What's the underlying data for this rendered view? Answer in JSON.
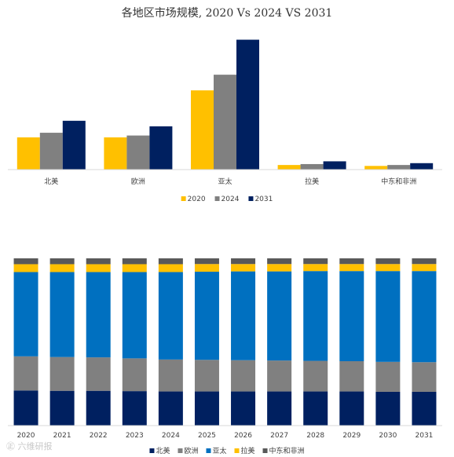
{
  "watermark": "㊣ 六维研报",
  "chart_data": [
    {
      "type": "bar",
      "title": "各地区市场规模, 2020 Vs 2024 VS 2031",
      "categories": [
        "北美",
        "欧洲",
        "亚太",
        "拉美",
        "中东和非洲"
      ],
      "series": [
        {
          "name": "2020",
          "color": "#FFC000",
          "values": [
            35,
            35,
            86,
            5,
            4
          ]
        },
        {
          "name": "2024",
          "color": "#808080",
          "values": [
            40,
            37,
            103,
            6,
            5
          ]
        },
        {
          "name": "2031",
          "color": "#002060",
          "values": [
            53,
            47,
            141,
            9,
            7
          ]
        }
      ],
      "ylim": [
        0,
        150
      ],
      "grid": false,
      "legend": "bottom"
    },
    {
      "type": "bar",
      "stacked": true,
      "normalized": true,
      "categories": [
        "2020",
        "2021",
        "2022",
        "2023",
        "2024",
        "2025",
        "2026",
        "2027",
        "2028",
        "2029",
        "2030",
        "2031"
      ],
      "series": [
        {
          "name": "北美",
          "color": "#002060",
          "values": [
            21,
            20.8,
            20.8,
            20.6,
            20.4,
            20.4,
            20.4,
            20.4,
            20.4,
            20.4,
            20.2,
            20.2
          ]
        },
        {
          "name": "欧洲",
          "color": "#808080",
          "values": [
            20.4,
            20.2,
            20,
            19.6,
            19.1,
            18.9,
            18.7,
            18.5,
            18.3,
            18.1,
            17.9,
            17.7
          ]
        },
        {
          "name": "亚太",
          "color": "#0070C0",
          "values": [
            50.4,
            50.8,
            51,
            51.6,
            52.3,
            52.7,
            53.1,
            53.3,
            53.7,
            53.9,
            54.3,
            54.5
          ]
        },
        {
          "name": "拉美",
          "color": "#FFC000",
          "values": [
            4.7,
            4.7,
            4.7,
            4.7,
            4.7,
            4.6,
            4.4,
            4.4,
            4.2,
            4.2,
            4.2,
            4.2
          ]
        },
        {
          "name": "中东和非洲",
          "color": "#595959",
          "values": [
            3.5,
            3.5,
            3.5,
            3.5,
            3.5,
            3.4,
            3.4,
            3.4,
            3.4,
            3.4,
            3.4,
            3.4
          ]
        }
      ],
      "ylim": [
        0,
        100
      ],
      "grid": false,
      "legend": "bottom"
    }
  ]
}
